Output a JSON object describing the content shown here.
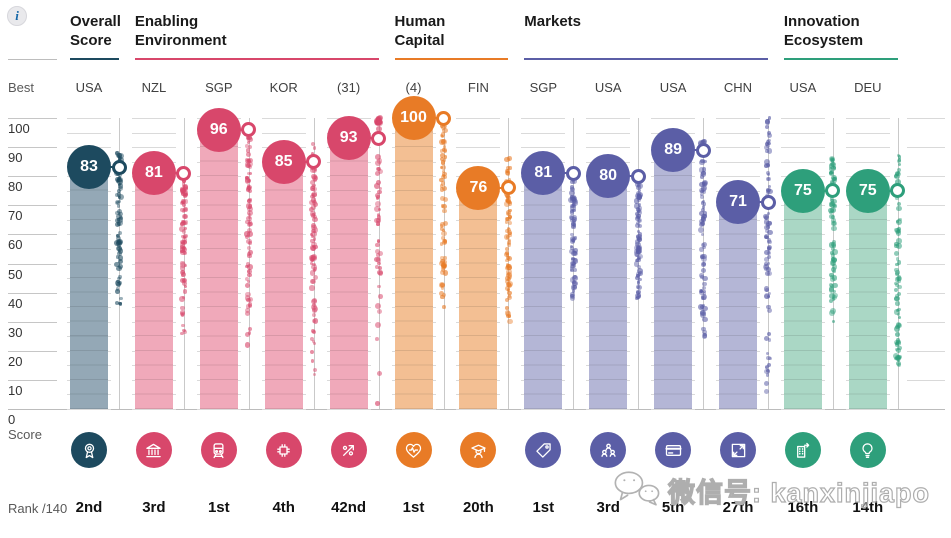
{
  "info_icon": {
    "glyph": "i"
  },
  "watermark": {
    "icon": "wechat-icon",
    "text": "微信号: kanxinjiapo"
  },
  "chart_data": {
    "type": "bar",
    "subtype": "pillar-bars-with-beeswarm-distribution",
    "title": "",
    "xlabel": "",
    "ylabel": "Score",
    "ylim": [
      0,
      100
    ],
    "grid": true,
    "gridline_step": 5,
    "y_ticks": [
      100,
      90,
      80,
      70,
      60,
      50,
      40,
      30,
      20,
      10,
      0
    ],
    "best_row_label": "Best",
    "rank_row_label": "Rank /140",
    "groups": [
      {
        "id": "overall",
        "label": "Overall\nScore",
        "color": "#1D4A5F",
        "bar_color": "#94A8B6"
      },
      {
        "id": "enabling",
        "label": "Enabling\nEnvironment",
        "color": "#D8476B",
        "bar_color": "#F0A9BA"
      },
      {
        "id": "human",
        "label": "Human\nCapital",
        "color": "#E87B26",
        "bar_color": "#F3BF93"
      },
      {
        "id": "markets",
        "label": "Markets",
        "color": "#5B5EA6",
        "bar_color": "#B4B6D6"
      },
      {
        "id": "innovation",
        "label": "Innovation\nEcosystem",
        "color": "#2E9F7B",
        "bar_color": "#AAD7C5"
      }
    ],
    "columns": [
      {
        "group": "overall",
        "best": "USA",
        "score": 83,
        "rank": "2nd",
        "icon": "award-icon",
        "swarm": {
          "min": 36,
          "max": 88,
          "count": 85,
          "skew": 0.75
        }
      },
      {
        "group": "enabling",
        "best": "NZL",
        "score": 81,
        "rank": "3rd",
        "icon": "bank-icon",
        "swarm": {
          "min": 26,
          "max": 81,
          "count": 85,
          "skew": 0.8
        }
      },
      {
        "group": "enabling",
        "best": "SGP",
        "score": 96,
        "rank": "1st",
        "icon": "train-icon",
        "swarm": {
          "min": 22,
          "max": 96,
          "count": 85,
          "skew": 0.7
        }
      },
      {
        "group": "enabling",
        "best": "KOR",
        "score": 85,
        "rank": "4th",
        "icon": "chip-icon",
        "swarm": {
          "min": 12,
          "max": 91,
          "count": 85,
          "skew": 0.75
        }
      },
      {
        "group": "enabling",
        "best": "(31)",
        "score": 93,
        "rank": "42nd",
        "icon": "percent-arrow-icon",
        "swarm": {
          "min": 2,
          "max": 100,
          "count": 78,
          "skew": 0.45,
          "cluster_at_max": 24
        }
      },
      {
        "group": "human",
        "best": "(4)",
        "score": 100,
        "rank": "1st",
        "icon": "heart-pulse-icon",
        "swarm": {
          "min": 35,
          "max": 100,
          "count": 85,
          "skew": 0.6,
          "cluster_at_max": 6
        }
      },
      {
        "group": "human",
        "best": "FIN",
        "score": 76,
        "rank": "20th",
        "icon": "graduate-icon",
        "swarm": {
          "min": 30,
          "max": 86,
          "count": 85,
          "skew": 0.8
        }
      },
      {
        "group": "markets",
        "best": "SGP",
        "score": 81,
        "rank": "1st",
        "icon": "price-tag-icon",
        "swarm": {
          "min": 38,
          "max": 81,
          "count": 85,
          "skew": 0.9
        }
      },
      {
        "group": "markets",
        "best": "USA",
        "score": 80,
        "rank": "3rd",
        "icon": "people-icon",
        "swarm": {
          "min": 38,
          "max": 81,
          "count": 85,
          "skew": 0.9
        }
      },
      {
        "group": "markets",
        "best": "USA",
        "score": 89,
        "rank": "5th",
        "icon": "credit-card-icon",
        "swarm": {
          "min": 25,
          "max": 92,
          "count": 85,
          "skew": 0.8
        }
      },
      {
        "group": "markets",
        "best": "CHN",
        "score": 71,
        "rank": "27th",
        "icon": "expand-arrows-icon",
        "swarm": {
          "min": 6,
          "max": 100,
          "count": 85,
          "skew": 0.85
        }
      },
      {
        "group": "innovation",
        "best": "USA",
        "score": 75,
        "rank": "16th",
        "icon": "building-arrow-icon",
        "swarm": {
          "min": 30,
          "max": 86,
          "count": 85,
          "skew": 0.85
        }
      },
      {
        "group": "innovation",
        "best": "DEU",
        "score": 75,
        "rank": "14th",
        "icon": "lightbulb-icon",
        "swarm": {
          "min": 15,
          "max": 87,
          "count": 85,
          "skew": 1.1
        }
      }
    ]
  }
}
